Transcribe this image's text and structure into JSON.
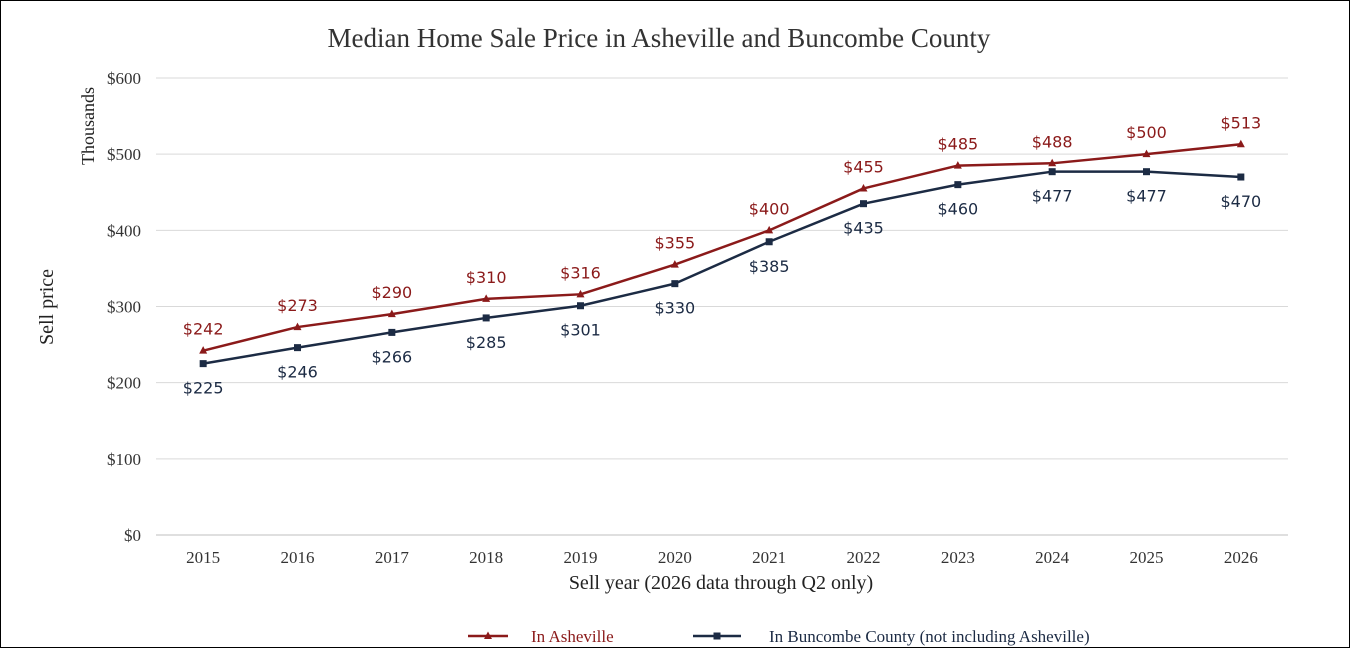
{
  "chart_data": {
    "type": "line",
    "title": "Median Home Sale Price in Asheville and Buncombe County",
    "xlabel": "Sell year (2026 data through Q2 only)",
    "ylabel": "Sell price",
    "yunit_label": "Thousands",
    "ylim": [
      0,
      600
    ],
    "yticks": [
      0,
      100,
      200,
      300,
      400,
      500,
      600
    ],
    "ytick_labels": [
      "$0",
      "$100",
      "$200",
      "$300",
      "$400",
      "$500",
      "$600"
    ],
    "grid": true,
    "legend_position": "bottom",
    "categories": [
      "2015",
      "2016",
      "2017",
      "2018",
      "2019",
      "2020",
      "2021",
      "2022",
      "2023",
      "2024",
      "2025",
      "2026"
    ],
    "series": [
      {
        "name": "In Asheville",
        "color": "#8b1a1a",
        "marker": "triangle",
        "values": [
          242,
          273,
          290,
          310,
          316,
          355,
          400,
          455,
          485,
          488,
          500,
          513
        ],
        "labels": [
          "$242",
          "$273",
          "$290",
          "$310",
          "$316",
          "$355",
          "$400",
          "$455",
          "$485",
          "$488",
          "$500",
          "$513"
        ]
      },
      {
        "name": "In Buncombe County (not including Asheville)",
        "color": "#1c2b44",
        "marker": "square",
        "values": [
          225,
          246,
          266,
          285,
          301,
          330,
          385,
          435,
          460,
          477,
          477,
          470
        ],
        "labels": [
          "$225",
          "$246",
          "$266",
          "$285",
          "$301",
          "$330",
          "$385",
          "$435",
          "$460",
          "$477",
          "$477",
          "$470"
        ]
      }
    ]
  }
}
